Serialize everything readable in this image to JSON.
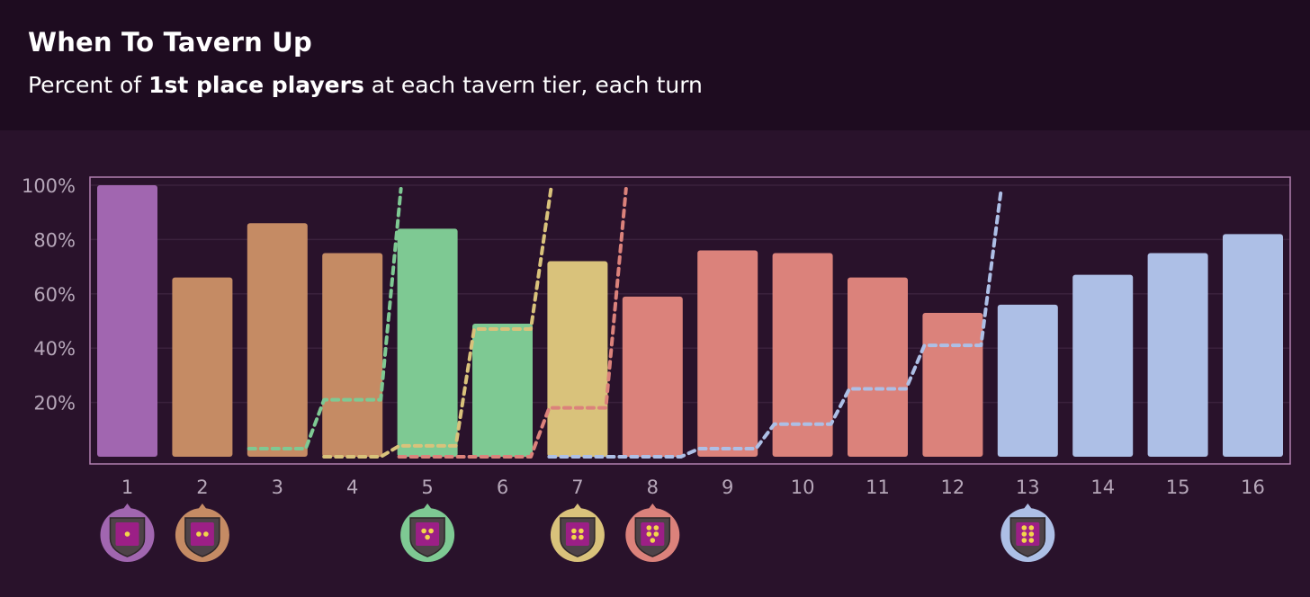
{
  "header": {
    "title": "When To Tavern Up",
    "subtitle_pre": "Percent of ",
    "subtitle_bold": "1st place players",
    "subtitle_post": " at each tavern tier, each turn"
  },
  "colors": {
    "tier1": "#a166b0",
    "tier2": "#c58b64",
    "tier3": "#7ec993",
    "tier4": "#d9c27b",
    "tier5": "#db827b",
    "tier6": "#adbfe6",
    "plot_border": "#b17fb0",
    "grid": "#3a213c",
    "axis_text": "#b6a7b9"
  },
  "chart_data": {
    "type": "bar",
    "title": "When To Tavern Up",
    "subtitle": "Percent of 1st place players at each tavern tier, each turn",
    "categories": [
      "1",
      "2",
      "3",
      "4",
      "5",
      "6",
      "7",
      "8",
      "9",
      "10",
      "11",
      "12",
      "13",
      "14",
      "15",
      "16"
    ],
    "bars": {
      "values": [
        100,
        66,
        86,
        75,
        84,
        49,
        72,
        59,
        76,
        75,
        66,
        53,
        56,
        67,
        75,
        82
      ],
      "tier": [
        1,
        2,
        2,
        2,
        3,
        3,
        4,
        5,
        5,
        5,
        5,
        5,
        6,
        6,
        6,
        6
      ]
    },
    "series": [
      {
        "tier": 3,
        "values": [
          null,
          null,
          3,
          21,
          100,
          null,
          null,
          null,
          null,
          null,
          null,
          null,
          null,
          null,
          null,
          null
        ]
      },
      {
        "tier": 4,
        "values": [
          null,
          null,
          null,
          0,
          4,
          47,
          100,
          null,
          null,
          null,
          null,
          null,
          null,
          null,
          null,
          null
        ]
      },
      {
        "tier": 5,
        "values": [
          null,
          null,
          null,
          null,
          0,
          0,
          18,
          100,
          null,
          null,
          null,
          null,
          null,
          null,
          null,
          null
        ]
      },
      {
        "tier": 6,
        "values": [
          null,
          null,
          null,
          null,
          null,
          null,
          0,
          0,
          3,
          12,
          25,
          41,
          100,
          null,
          null,
          null
        ]
      }
    ],
    "ylim": [
      0,
      100
    ],
    "yticks": [
      "100%",
      "80%",
      "60%",
      "40%",
      "20%"
    ],
    "ytick_values": [
      100,
      80,
      60,
      40,
      20
    ],
    "tier_markers": [
      {
        "turn": 1,
        "tier": 1
      },
      {
        "turn": 2,
        "tier": 2
      },
      {
        "turn": 5,
        "tier": 3
      },
      {
        "turn": 7,
        "tier": 4
      },
      {
        "turn": 8,
        "tier": 5
      },
      {
        "turn": 13,
        "tier": 6
      }
    ],
    "grid": true,
    "legend": "none"
  }
}
